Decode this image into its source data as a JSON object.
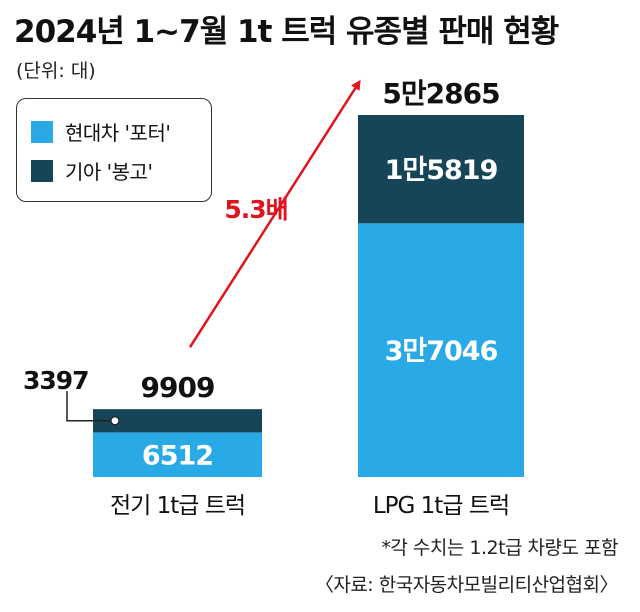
{
  "title": "2024년 1~7월 1t 트럭 유종별 판매 현황",
  "unit_note": "(단위: 대)",
  "legend": [
    {
      "label": "현대차 '포터'",
      "color": "#29a9e6"
    },
    {
      "label": "기아 '봉고'",
      "color": "#154556"
    }
  ],
  "chart_data": {
    "type": "bar",
    "stacked": true,
    "title": "2024년 1~7월 1t 트럭 유종별 판매 현황",
    "categories": [
      "전기 1t급 트럭",
      "LPG 1t급 트럭"
    ],
    "series": [
      {
        "name": "현대차 '포터'",
        "color": "#29a9e6",
        "values": [
          6512,
          37046
        ],
        "value_labels": [
          "6512",
          "3만7046"
        ]
      },
      {
        "name": "기아 '봉고'",
        "color": "#154556",
        "values": [
          3397,
          15819
        ],
        "value_labels": [
          "3397",
          "1만5819"
        ]
      }
    ],
    "totals": [
      9909,
      52865
    ],
    "total_labels": [
      "9909",
      "5만2865"
    ],
    "ratio_annotation": "5.3배",
    "ylim": [
      0,
      52865
    ],
    "grid": false,
    "legend_position": "top-left"
  },
  "footnotes": [
    "*각 수치는 1.2t급 차량도 포함",
    "〈자료: 한국자동차모빌리티산업협회〉"
  ]
}
